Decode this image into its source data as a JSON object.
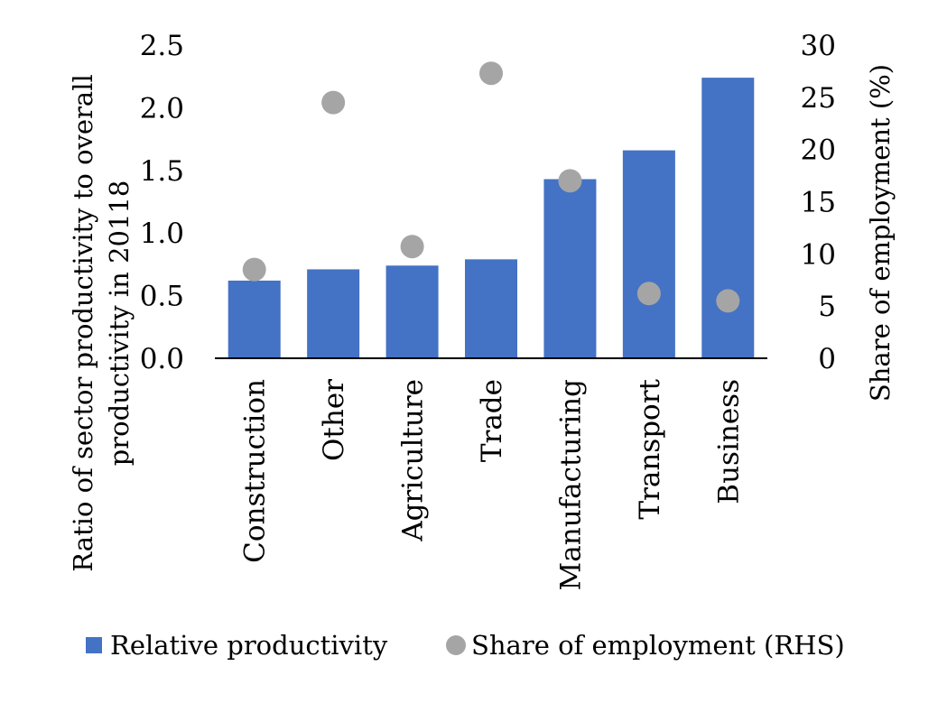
{
  "chart_data": {
    "type": "bar",
    "categories": [
      "Construction",
      "Other",
      "Agriculture",
      "Trade",
      "Manufacturing",
      "Transport",
      "Business"
    ],
    "series": [
      {
        "name": "Relative productivity",
        "type": "bar",
        "axis": "left",
        "color": "#4472C4",
        "values": [
          0.62,
          0.71,
          0.74,
          0.79,
          1.43,
          1.66,
          2.24
        ]
      },
      {
        "name": "Share of employment (RHS)",
        "type": "scatter",
        "axis": "right",
        "color": "#A5A5A5",
        "values": [
          8.5,
          24.5,
          10.7,
          27.3,
          17.0,
          6.2,
          5.5
        ]
      }
    ],
    "ylabel": "Ratio of sector productivity to overall productivity in 20118",
    "y2label": "Share of employment (%)",
    "ylim": [
      0,
      2.5
    ],
    "y2lim": [
      0,
      30
    ],
    "yticks": [
      "0.0",
      "0.5",
      "1.0",
      "1.5",
      "2.0",
      "2.5"
    ],
    "y2ticks": [
      "0",
      "5",
      "10",
      "15",
      "20",
      "25",
      "30"
    ],
    "legend_position": "bottom",
    "grid": false
  }
}
